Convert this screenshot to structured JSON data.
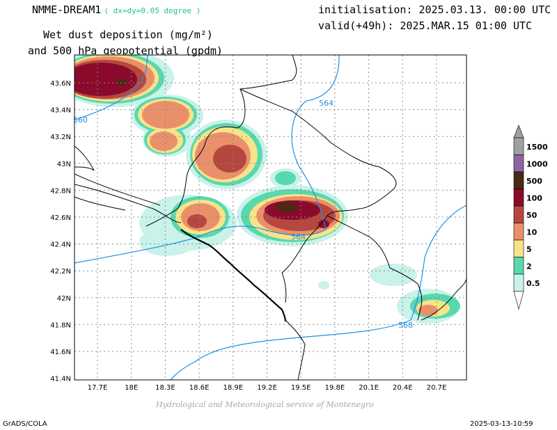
{
  "header": {
    "model": "NMME-DREAM1",
    "resolution": "( dx=dy=0.05 degree )",
    "title_line1": "Wet dust deposition (mg/m²)",
    "title_line2": "and 500 hPa geopotential (gpdm)",
    "initialisation": "initialisation: 2025.03.13. 00:00 UTC",
    "valid": "valid(+49h): 2025.MAR.15 01:00 UTC"
  },
  "map": {
    "lat_ticks": [
      "43.6N",
      "43.4N",
      "43.2N",
      "43N",
      "42.8N",
      "42.6N",
      "42.4N",
      "42.2N",
      "42N",
      "41.8N",
      "41.6N",
      "41.4N"
    ],
    "lon_ticks": [
      "17.7E",
      "18E",
      "18.3E",
      "18.6E",
      "18.9E",
      "19.2E",
      "19.5E",
      "19.8E",
      "20.1E",
      "20.4E",
      "20.7E"
    ],
    "contour_labels": [
      "560",
      "564",
      "564",
      "568"
    ]
  },
  "legend": {
    "levels": [
      "1500",
      "1000",
      "500",
      "100",
      "50",
      "10",
      "5",
      "2",
      "0.5"
    ],
    "colors": [
      "#e6e6e6",
      "#a0a0a0",
      "#8e63a2",
      "#4a2a14",
      "#8b0a2c",
      "#b5473e",
      "#e9906a",
      "#f8e38a",
      "#58d8ad",
      "#c8f2ea"
    ]
  },
  "footer": {
    "agency": "Hydrological and Meteorological service of Montenegro",
    "software": "GrADS/COLA",
    "timestamp": "2025-03-13-10:59"
  }
}
